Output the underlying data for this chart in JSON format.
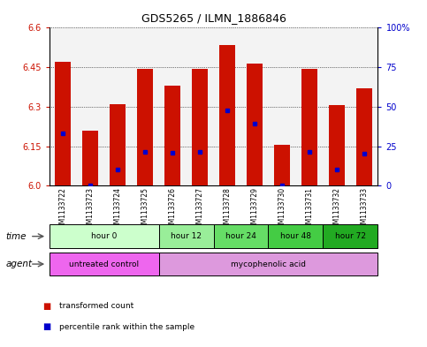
{
  "title": "GDS5265 / ILMN_1886846",
  "samples": [
    "GSM1133722",
    "GSM1133723",
    "GSM1133724",
    "GSM1133725",
    "GSM1133726",
    "GSM1133727",
    "GSM1133728",
    "GSM1133729",
    "GSM1133730",
    "GSM1133731",
    "GSM1133732",
    "GSM1133733"
  ],
  "bar_tops": [
    6.47,
    6.21,
    6.31,
    6.445,
    6.38,
    6.445,
    6.535,
    6.465,
    6.155,
    6.445,
    6.305,
    6.37
  ],
  "bar_bottom": 6.0,
  "percentile_values": [
    6.2,
    6.0,
    6.06,
    6.13,
    6.125,
    6.13,
    6.285,
    6.235,
    6.0,
    6.13,
    6.06,
    6.12
  ],
  "ylim_left": [
    6.0,
    6.6
  ],
  "ylim_right": [
    0,
    100
  ],
  "yticks_left": [
    6.0,
    6.15,
    6.3,
    6.45,
    6.6
  ],
  "yticks_right": [
    0,
    25,
    50,
    75,
    100
  ],
  "bar_color": "#cc1100",
  "dot_color": "#0000cc",
  "background_color": "#ffffff",
  "time_groups": [
    {
      "label": "hour 0",
      "start": 0,
      "end": 4,
      "color": "#ccffcc"
    },
    {
      "label": "hour 12",
      "start": 4,
      "end": 6,
      "color": "#99ee99"
    },
    {
      "label": "hour 24",
      "start": 6,
      "end": 8,
      "color": "#66dd66"
    },
    {
      "label": "hour 48",
      "start": 8,
      "end": 10,
      "color": "#44cc44"
    },
    {
      "label": "hour 72",
      "start": 10,
      "end": 12,
      "color": "#22aa22"
    }
  ],
  "agent_groups": [
    {
      "label": "untreated control",
      "start": 0,
      "end": 4,
      "color": "#ee66ee"
    },
    {
      "label": "mycophenolic acid",
      "start": 4,
      "end": 12,
      "color": "#dd99dd"
    }
  ],
  "legend_red": "transformed count",
  "legend_blue": "percentile rank within the sample",
  "row_label_time": "time",
  "row_label_agent": "agent"
}
